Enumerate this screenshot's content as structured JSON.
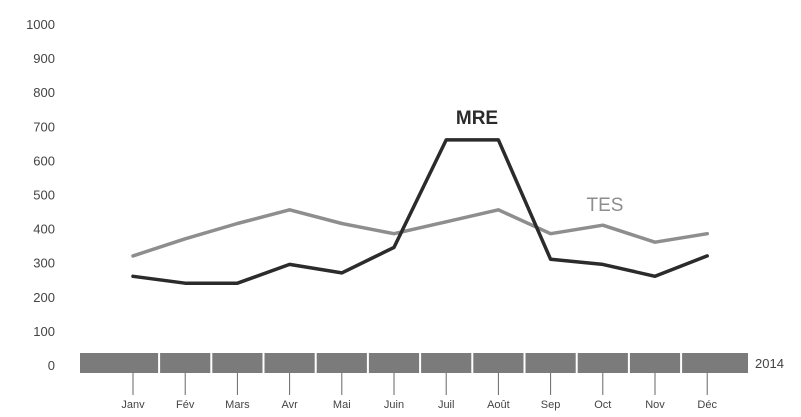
{
  "chart_data": {
    "type": "line",
    "categories": [
      "Janv",
      "Fév",
      "Mars",
      "Avr",
      "Mai",
      "Juin",
      "Juil",
      "Août",
      "Sep",
      "Oct",
      "Nov",
      "Déc"
    ],
    "year_label": "2014",
    "y_ticks": [
      0,
      100,
      200,
      300,
      400,
      500,
      600,
      700,
      800,
      900,
      1000
    ],
    "ylim": [
      0,
      1000
    ],
    "grid": false,
    "legend": "inline labels",
    "series": [
      {
        "name": "MRE",
        "values": [
          260,
          240,
          240,
          295,
          270,
          345,
          660,
          660,
          310,
          295,
          260,
          320
        ],
        "color": "#2b2b2b"
      },
      {
        "name": "TES",
        "values": [
          320,
          370,
          415,
          455,
          415,
          385,
          420,
          455,
          385,
          410,
          360,
          385
        ],
        "color": "#8e8e8e"
      }
    ]
  }
}
